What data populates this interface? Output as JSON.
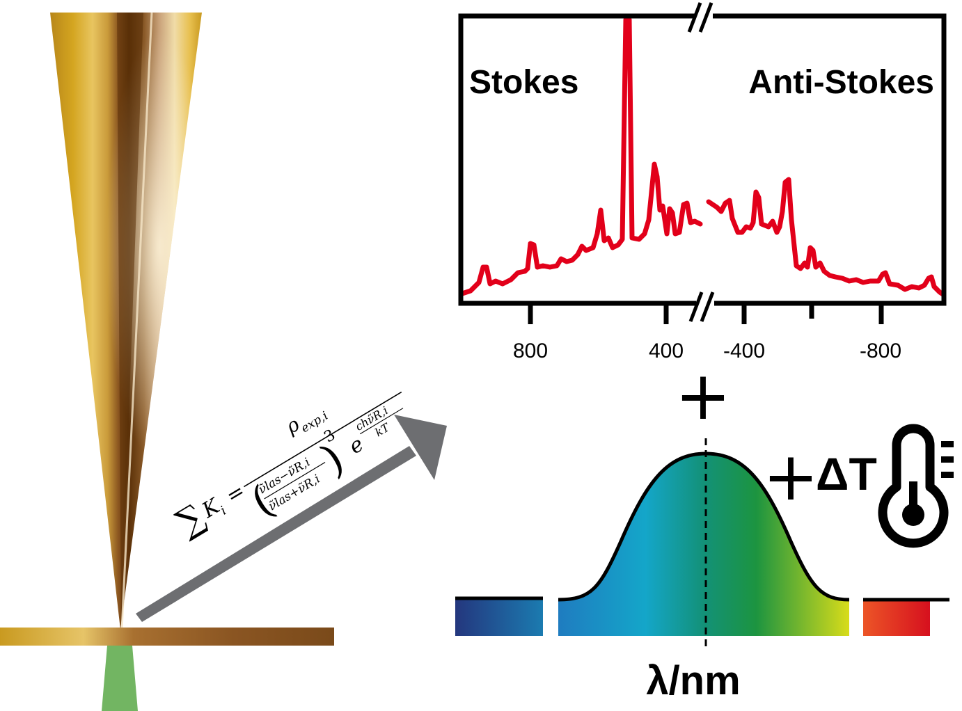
{
  "spectrum": {
    "stokes_label": "Stokes",
    "antistokes_label": "Anti-Stokes",
    "tick_labels": [
      "800",
      "400",
      "-400",
      "-800"
    ]
  },
  "symbols": {
    "plus_top": "+",
    "plus_delta": "+",
    "delta_t": "ΔT",
    "lambda_axis": "λ/nm"
  },
  "equation": {
    "sum": "∑",
    "lhs": "K",
    "lhs_sub": "i",
    "eq": "=",
    "numerator": "ρ",
    "numerator_sub": "exp,i",
    "den_top": "ν̃las−ν̃R,i",
    "den_bottom": "ν̃las+ν̃R,i",
    "power": "3",
    "exp_base": "e",
    "exp_top": "chν̃R,i",
    "exp_bottom": "kT"
  },
  "colors": {
    "spectrum_line": "#e2001a",
    "tip_gold": "#d4a520",
    "tip_dark": "#5a3008",
    "sample_bar": "#7a4a1a",
    "laser_green": "#72b562",
    "arrow_gray": "#6d6e71",
    "thermometer": "#000000"
  }
}
